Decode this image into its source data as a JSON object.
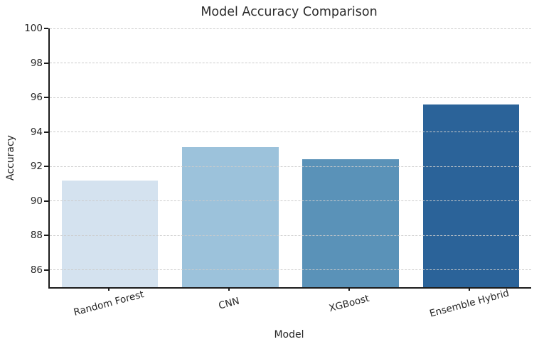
{
  "chart_data": {
    "type": "bar",
    "title": "Model Accuracy Comparison",
    "xlabel": "Model",
    "ylabel": "Accuracy",
    "categories": [
      "Random Forest",
      "CNN",
      "XGBoost",
      "Ensemble Hybrid"
    ],
    "values": [
      91.2,
      93.1,
      92.4,
      95.6
    ],
    "bar_colors": [
      "#d4e2ef",
      "#9cc2db",
      "#5a92b8",
      "#2b6399"
    ],
    "ylim": [
      85,
      100
    ],
    "yticks": [
      86,
      88,
      90,
      92,
      94,
      96,
      98,
      100
    ],
    "grid": "horizontal-dashed",
    "legend": "none",
    "x_tick_rotation_deg": 15,
    "background_color": "#ffffff",
    "bar_width_fraction": 0.8
  }
}
